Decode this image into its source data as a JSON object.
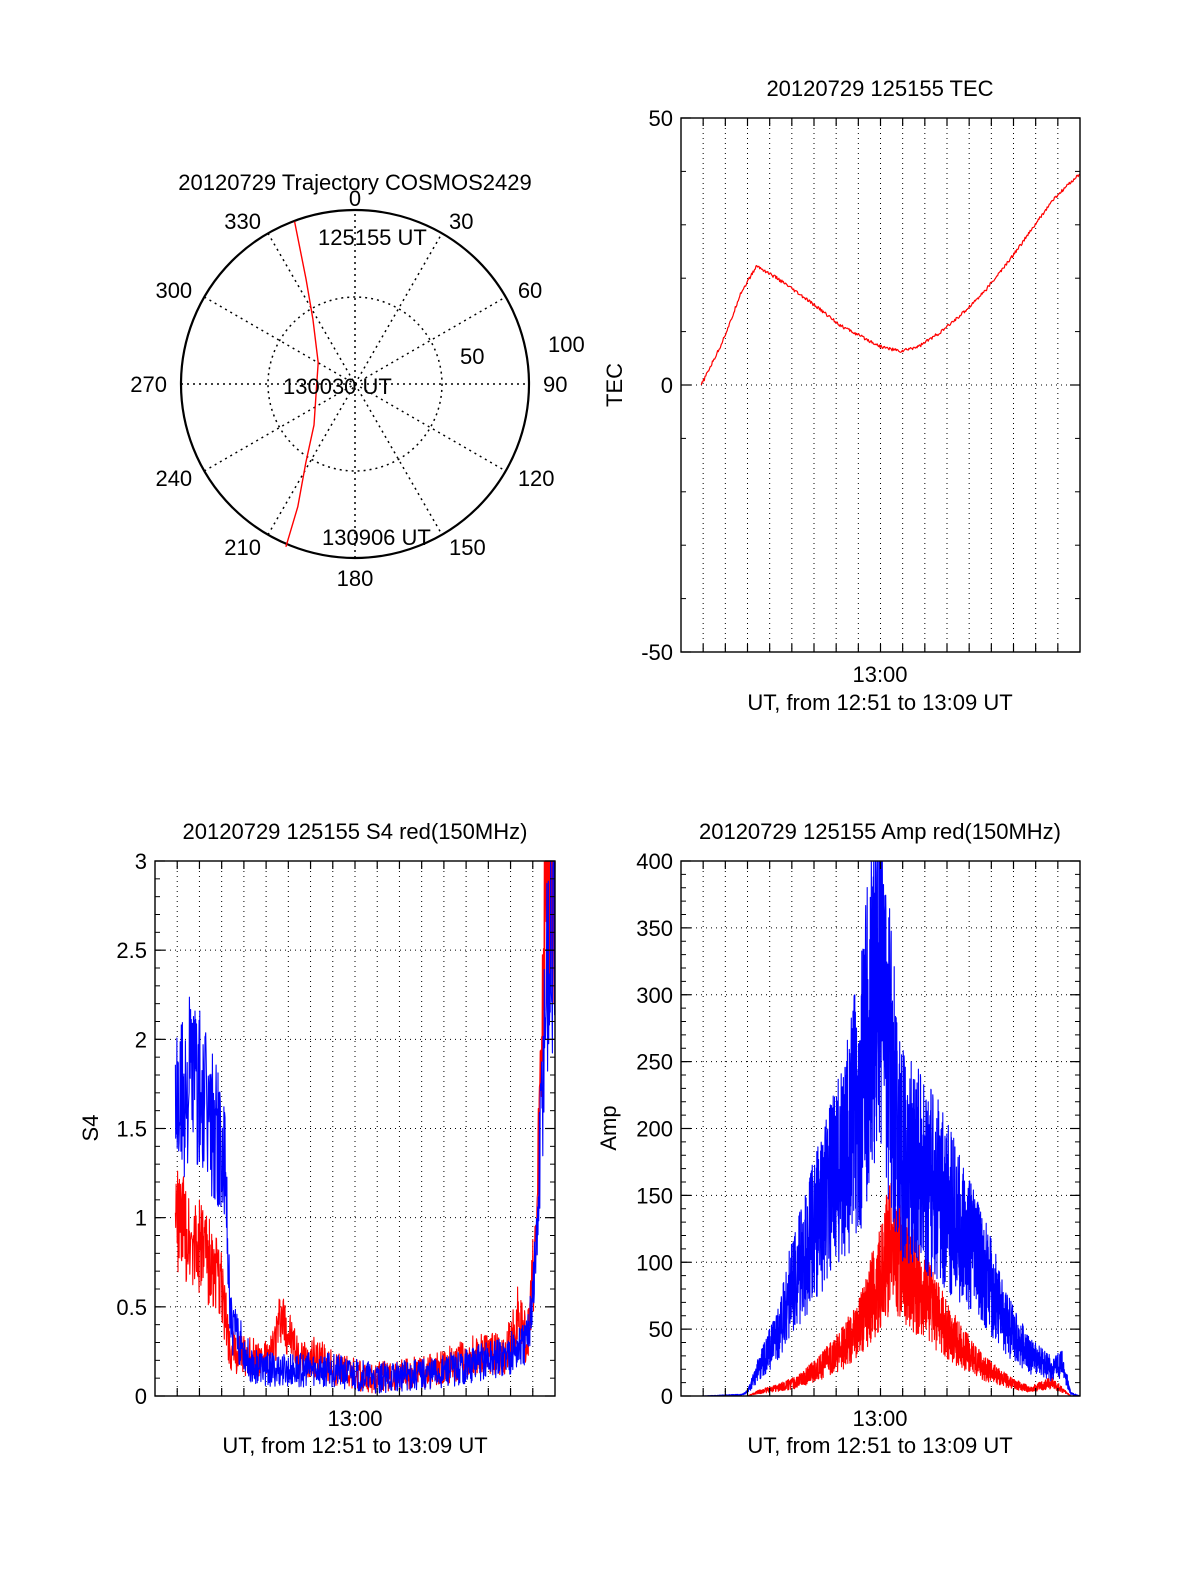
{
  "colors": {
    "red": "#ff0000",
    "blue": "#0000ff",
    "ink": "#000000",
    "background": "#ffffff"
  },
  "chart_data": [
    {
      "id": "trajectory",
      "type": "scatter",
      "projection": "polar",
      "title": "20120729 Trajectory COSMOS2429",
      "azimuth_labels": [
        "0",
        "30",
        "60",
        "90",
        "120",
        "150",
        "180",
        "210",
        "240",
        "270",
        "300",
        "330"
      ],
      "radial_labels": [
        "50",
        "100"
      ],
      "elevation_rings": [
        50,
        100
      ],
      "series": [
        {
          "color": "#ff0000",
          "points_az_r": [
            [
              339.6,
              89.6
            ],
            [
              335,
              60
            ],
            [
              327,
              40
            ],
            [
              300,
              22
            ],
            [
              265,
              20
            ],
            [
              225,
              30
            ],
            [
              212,
              48
            ],
            [
              205,
              70
            ],
            [
              203,
              91.5
            ]
          ]
        }
      ],
      "annotations": [
        "125155 UT",
        "130030 UT",
        "130906 UT"
      ]
    },
    {
      "id": "tec",
      "type": "line",
      "title": "20120729 125155 TEC",
      "xlabel": "UT, from 12:51 to 13:09 UT",
      "ylabel": "TEC",
      "xlim": [
        "12:51:00",
        "13:09:00"
      ],
      "ylim": [
        -50,
        50
      ],
      "xticks": [
        "13:00"
      ],
      "yticks": [
        "-50",
        "0",
        "50"
      ],
      "grid": true,
      "series": [
        {
          "color": "#ff0000",
          "x": [
            "12:51:55",
            "12:52:20",
            "12:52:45",
            "12:53:15",
            "12:53:40",
            "12:54:25",
            "12:55:20",
            "12:56:10",
            "12:57:10",
            "12:58:15",
            "12:59:10",
            "13:00:00",
            "13:00:55",
            "13:01:45",
            "13:02:45",
            "13:03:45",
            "13:04:45",
            "13:05:45",
            "13:06:45",
            "13:07:45",
            "13:08:35",
            "13:09:00"
          ],
          "y": [
            0.0,
            3.5,
            7.0,
            12.0,
            17.0,
            22.3,
            20.0,
            17.5,
            14.5,
            11.0,
            9.0,
            7.2,
            6.3,
            7.3,
            10.0,
            13.6,
            17.8,
            23.0,
            28.7,
            34.5,
            38.0,
            39.5
          ]
        }
      ]
    },
    {
      "id": "s4",
      "type": "line",
      "title": "20120729 125155 S4 red(150MHz)",
      "xlabel": "UT, from 12:51 to 13:09 UT",
      "ylabel": "S4",
      "xlim": [
        "12:51:00",
        "13:09:00"
      ],
      "ylim": [
        0,
        3
      ],
      "xticks": [
        "13:00"
      ],
      "yticks": [
        "0",
        "0.5",
        "1",
        "1.5",
        "2",
        "2.5",
        "3"
      ],
      "grid": true,
      "series": [
        {
          "color": "#ff0000",
          "x": [
            "12:51:55",
            "12:53:15",
            "12:54:00",
            "12:54:25",
            "12:55:20",
            "12:56:10",
            "12:56:40",
            "12:57:30",
            "12:58:15",
            "12:59:10",
            "13:00:00",
            "13:00:55",
            "13:01:45",
            "13:02:45",
            "13:03:45",
            "13:04:45",
            "13:05:50",
            "13:06:45",
            "13:07:20",
            "13:07:45",
            "13:08:10",
            "13:08:35",
            "13:09:00"
          ],
          "y": [
            1.0,
            0.8,
            0.6,
            0.25,
            0.22,
            0.2,
            0.45,
            0.2,
            0.22,
            0.15,
            0.12,
            0.1,
            0.12,
            0.13,
            0.15,
            0.2,
            0.25,
            0.22,
            0.45,
            0.3,
            0.9,
            3.0,
            3.0
          ]
        },
        {
          "color": "#0000ff",
          "x": [
            "12:51:55",
            "12:52:40",
            "12:53:15",
            "12:53:50",
            "12:54:10",
            "12:54:25",
            "12:55:20",
            "12:56:10",
            "12:57:10",
            "12:58:15",
            "12:59:10",
            "13:00:00",
            "13:00:55",
            "13:01:45",
            "13:02:45",
            "13:03:45",
            "13:04:45",
            "13:05:50",
            "13:06:45",
            "13:07:45",
            "13:08:10",
            "13:08:35",
            "13:09:00"
          ],
          "y": [
            1.6,
            1.8,
            1.6,
            1.45,
            1.2,
            0.4,
            0.18,
            0.15,
            0.14,
            0.15,
            0.14,
            0.12,
            0.1,
            0.11,
            0.12,
            0.13,
            0.16,
            0.2,
            0.22,
            0.3,
            0.8,
            2.3,
            2.6
          ]
        }
      ]
    },
    {
      "id": "amp",
      "type": "line",
      "title": "20120729 125155 Amp red(150MHz)",
      "xlabel": "UT, from 12:51 to 13:09 UT",
      "ylabel": "Amp",
      "xlim": [
        "12:51:00",
        "13:09:00"
      ],
      "ylim": [
        0,
        400
      ],
      "xticks": [
        "13:00"
      ],
      "yticks": [
        "0",
        "50",
        "100",
        "150",
        "200",
        "250",
        "300",
        "350",
        "400"
      ],
      "grid": true,
      "series": [
        {
          "color": "#ff0000",
          "x": [
            "12:51:55",
            "12:54:00",
            "12:54:30",
            "12:55:20",
            "12:56:10",
            "12:57:10",
            "12:58:15",
            "12:59:10",
            "13:00:00",
            "13:00:30",
            "13:00:55",
            "13:01:45",
            "13:02:45",
            "13:03:45",
            "13:04:45",
            "13:05:50",
            "13:06:45",
            "13:07:45",
            "13:08:10",
            "13:08:35",
            "13:09:00"
          ],
          "y": [
            0,
            0,
            3,
            6,
            10,
            20,
            35,
            55,
            90,
            115,
            100,
            80,
            55,
            35,
            20,
            10,
            5,
            10,
            5,
            0,
            0
          ]
        },
        {
          "color": "#0000ff",
          "x": [
            "12:51:55",
            "12:53:45",
            "12:54:00",
            "12:54:30",
            "12:55:20",
            "12:56:10",
            "12:57:10",
            "12:58:15",
            "12:59:10",
            "12:59:40",
            "13:00:00",
            "13:00:30",
            "13:00:55",
            "13:01:45",
            "13:02:45",
            "13:03:45",
            "13:04:45",
            "13:05:50",
            "13:06:45",
            "13:07:45",
            "13:08:10",
            "13:08:35",
            "13:09:00"
          ],
          "y": [
            0,
            1,
            3,
            20,
            45,
            90,
            130,
            170,
            230,
            300,
            330,
            240,
            180,
            170,
            150,
            120,
            90,
            50,
            30,
            20,
            25,
            2,
            0
          ]
        }
      ]
    }
  ]
}
